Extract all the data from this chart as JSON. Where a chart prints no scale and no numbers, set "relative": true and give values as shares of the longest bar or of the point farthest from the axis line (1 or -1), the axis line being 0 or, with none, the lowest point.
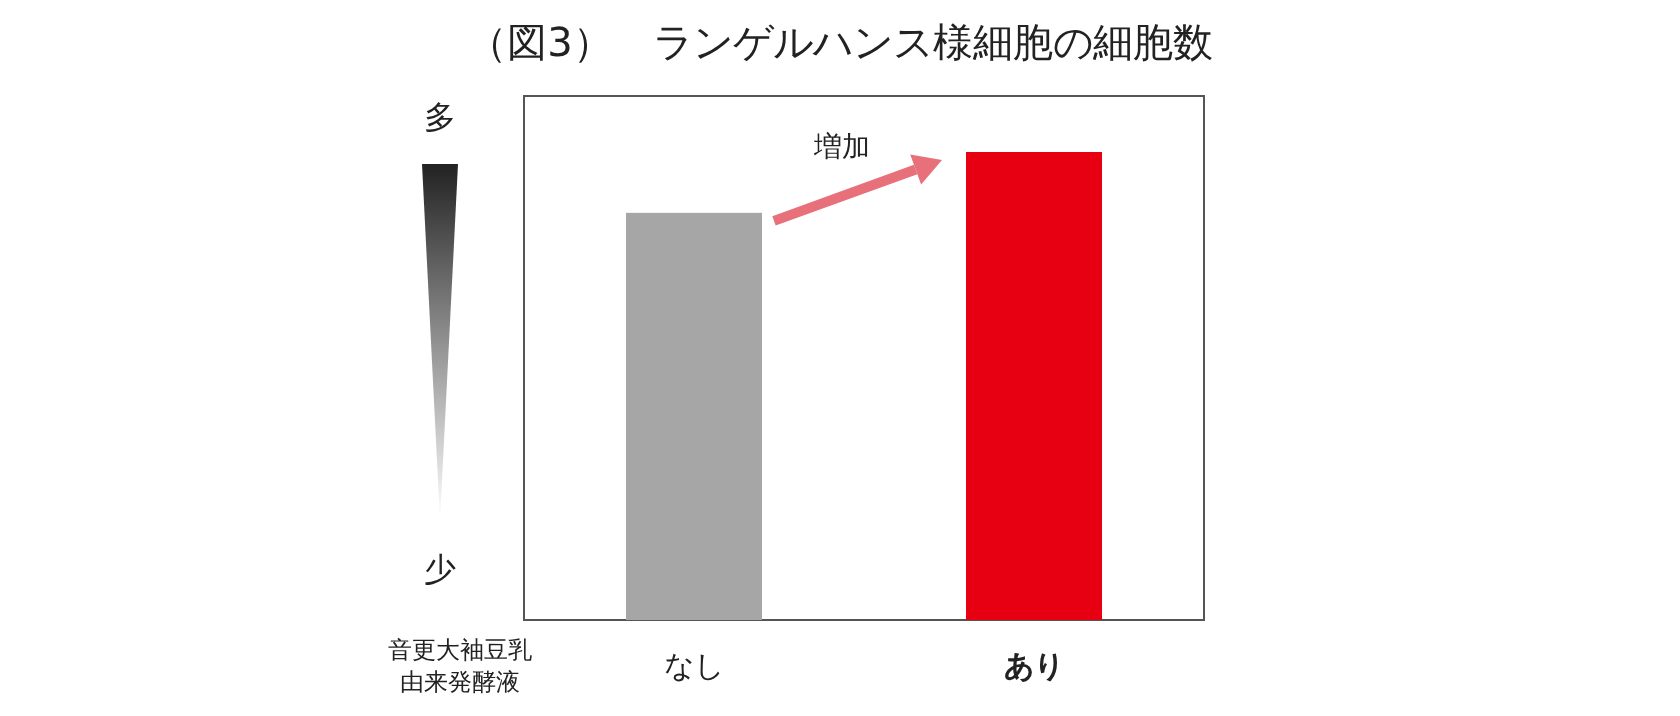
{
  "chart_data": {
    "type": "bar",
    "title": "（図3）　ランゲルハンス様細胞の細胞数",
    "xlabel": "音更大袖豆乳由来発酵液",
    "categories": [
      "なし",
      "あり"
    ],
    "values": [
      0.87,
      1
    ],
    "colors": [
      "#a6a6a6",
      "#e60012"
    ],
    "relative": true,
    "annotations": [
      "多",
      "少",
      "増加"
    ]
  }
}
